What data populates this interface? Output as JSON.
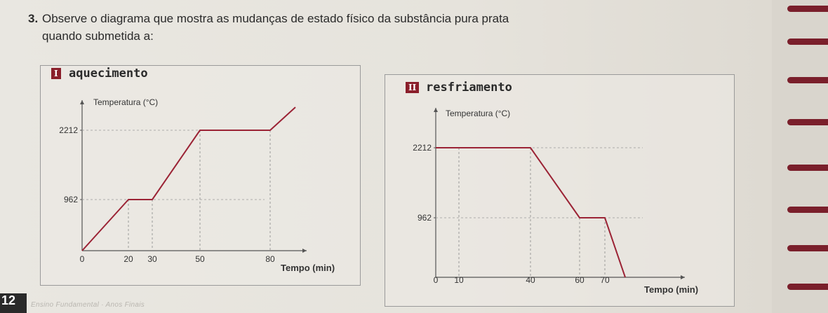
{
  "question": {
    "number": "3.",
    "line1": "Observe o diagrama que mostra as mudanças de estado físico da substância pura prata",
    "line2": "quando submetida a:"
  },
  "colors": {
    "curve": "#9b2335",
    "badge": "#8a1e2a",
    "ring": "#7a1f2b"
  },
  "chart_data": [
    {
      "type": "line",
      "badge": "I",
      "title": "aquecimento",
      "ylabel": "Temperatura (°C)",
      "xlabel": "Tempo (min)",
      "xticks": [
        "0",
        "20",
        "30",
        "50",
        "80"
      ],
      "yticks": [
        "962",
        "2212"
      ],
      "points": [
        [
          0,
          0
        ],
        [
          20,
          962
        ],
        [
          30,
          962
        ],
        [
          50,
          2212
        ],
        [
          80,
          2212
        ],
        [
          95,
          2650
        ]
      ]
    },
    {
      "type": "line",
      "badge": "II",
      "title": "resfriamento",
      "ylabel": "Temperatura (°C)",
      "xlabel": "Tempo (min)",
      "xticks": [
        "0",
        "10",
        "40",
        "60",
        "70"
      ],
      "yticks": [
        "962",
        "2212"
      ],
      "points": [
        [
          0,
          2212
        ],
        [
          10,
          2212
        ],
        [
          40,
          2212
        ],
        [
          60,
          962
        ],
        [
          70,
          962
        ],
        [
          80,
          0
        ]
      ]
    }
  ],
  "footer": {
    "page_number": "12",
    "text": "Ensino Fundamental · Anos Finais"
  }
}
